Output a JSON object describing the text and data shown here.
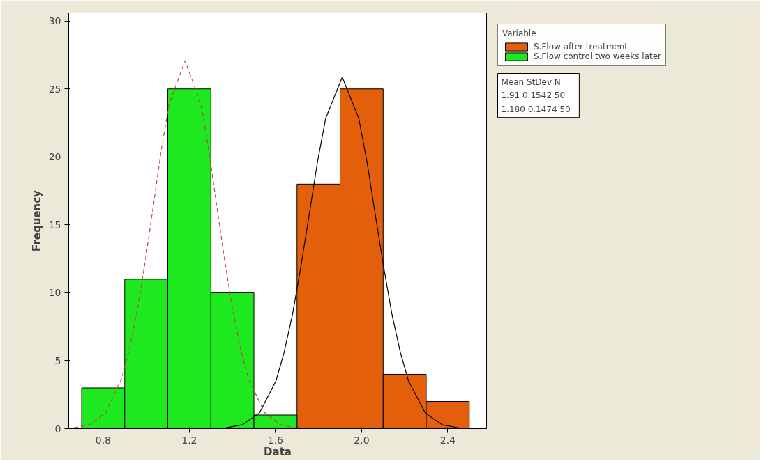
{
  "chart_data": {
    "type": "histogram",
    "xlabel": "Data",
    "ylabel": "Frequency",
    "legend_title": "Variable",
    "legend": "top right",
    "xlim": [
      0.64,
      2.58
    ],
    "ylim": [
      0,
      30.6
    ],
    "xticks": [
      0.8,
      1.2,
      1.6,
      {
        "value": 2,
        "label": "2.0"
      },
      2.4
    ],
    "yticks": [
      0,
      5,
      10,
      15,
      20,
      25,
      30
    ],
    "grid": false,
    "series": [
      {
        "name": "S.Flow after treatment",
        "color": "#e35f0b",
        "bins": [
          1.7,
          1.9,
          2.1,
          2.3,
          2.5
        ],
        "values": [
          18,
          25,
          4,
          2
        ]
      },
      {
        "name": "S.Flow control two weeks later",
        "color": "#1ee81e",
        "bins": [
          0.7,
          0.9,
          1.1,
          1.3,
          1.5,
          1.7
        ],
        "values": [
          3,
          11,
          25,
          10,
          1
        ]
      },
      {
        "type": "line",
        "color": "#000000",
        "line_style": "solid",
        "x": [
          1.37,
          1.447,
          1.525,
          1.602,
          1.64,
          1.679,
          1.717,
          1.756,
          1.794,
          1.833,
          1.91,
          1.987,
          2.026,
          2.064,
          2.103,
          2.141,
          2.18,
          2.218,
          2.296,
          2.373,
          2.45
        ],
        "values": [
          0.06,
          0.29,
          1.14,
          3.5,
          5.6,
          8.4,
          11.84,
          15.69,
          19.53,
          22.83,
          25.87,
          22.83,
          19.53,
          15.69,
          11.84,
          8.4,
          5.6,
          3.5,
          1.14,
          0.29,
          0.06
        ]
      },
      {
        "type": "line",
        "color": "#c04848",
        "line_style": "dashed",
        "x": [
          0.664,
          0.738,
          0.812,
          0.885,
          0.922,
          0.959,
          0.996,
          1.033,
          1.069,
          1.106,
          1.18,
          1.254,
          1.291,
          1.327,
          1.364,
          1.401,
          1.438,
          1.475,
          1.549,
          1.622,
          1.696
        ],
        "values": [
          0.06,
          0.3,
          1.19,
          3.66,
          5.86,
          8.79,
          12.39,
          16.42,
          20.43,
          23.89,
          27.07,
          23.89,
          20.43,
          16.42,
          12.39,
          8.79,
          5.86,
          3.66,
          1.19,
          0.3,
          0.06
        ]
      }
    ],
    "annotations": [
      "Mean   StDev    N",
      "1.91   0.1542  50",
      "1.180  0.1474  50"
    ]
  }
}
